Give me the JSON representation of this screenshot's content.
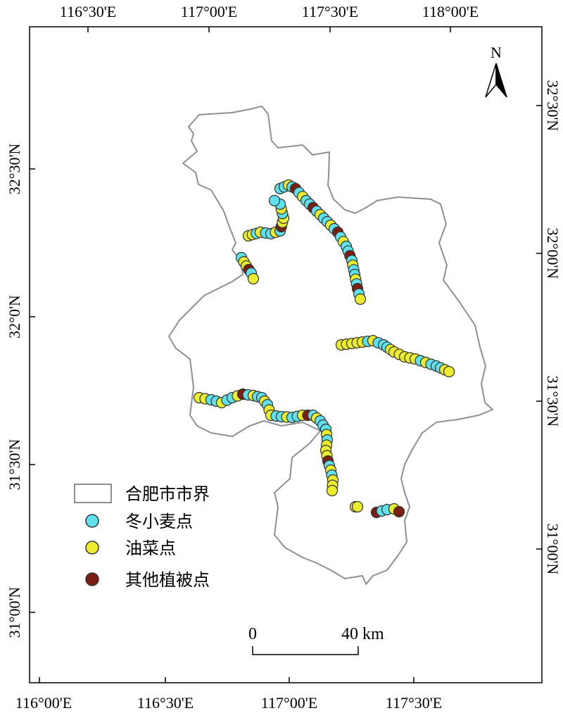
{
  "frame": {
    "top_ticks": [
      "116°30'E",
      "117°00'E",
      "117°30'E",
      "118°00'E"
    ],
    "bottom_ticks": [
      "116°00'E",
      "116°30'E",
      "117°00'E",
      "117°30'E"
    ],
    "left_ticks": [
      "32°30'N",
      "32°0'N",
      "31°30'N",
      "31°00'N"
    ],
    "right_ticks": [
      "32°30'N",
      "32°00'N",
      "31°30'N",
      "31°00'N"
    ]
  },
  "north_arrow": {
    "label": "N"
  },
  "scale_bar": {
    "start_label": "0",
    "end_label": "40 km"
  },
  "legend": {
    "boundary_label": "合肥市市界",
    "wheat_label": "冬小麦点",
    "rapeseed_label": "油菜点",
    "other_label": "其他植被点"
  },
  "colors": {
    "boundary": "#8a9196",
    "wheat": "#5fe0ea",
    "rapeseed": "#ecec2f",
    "other": "#7a1f12",
    "point_stroke": "#333333"
  }
}
